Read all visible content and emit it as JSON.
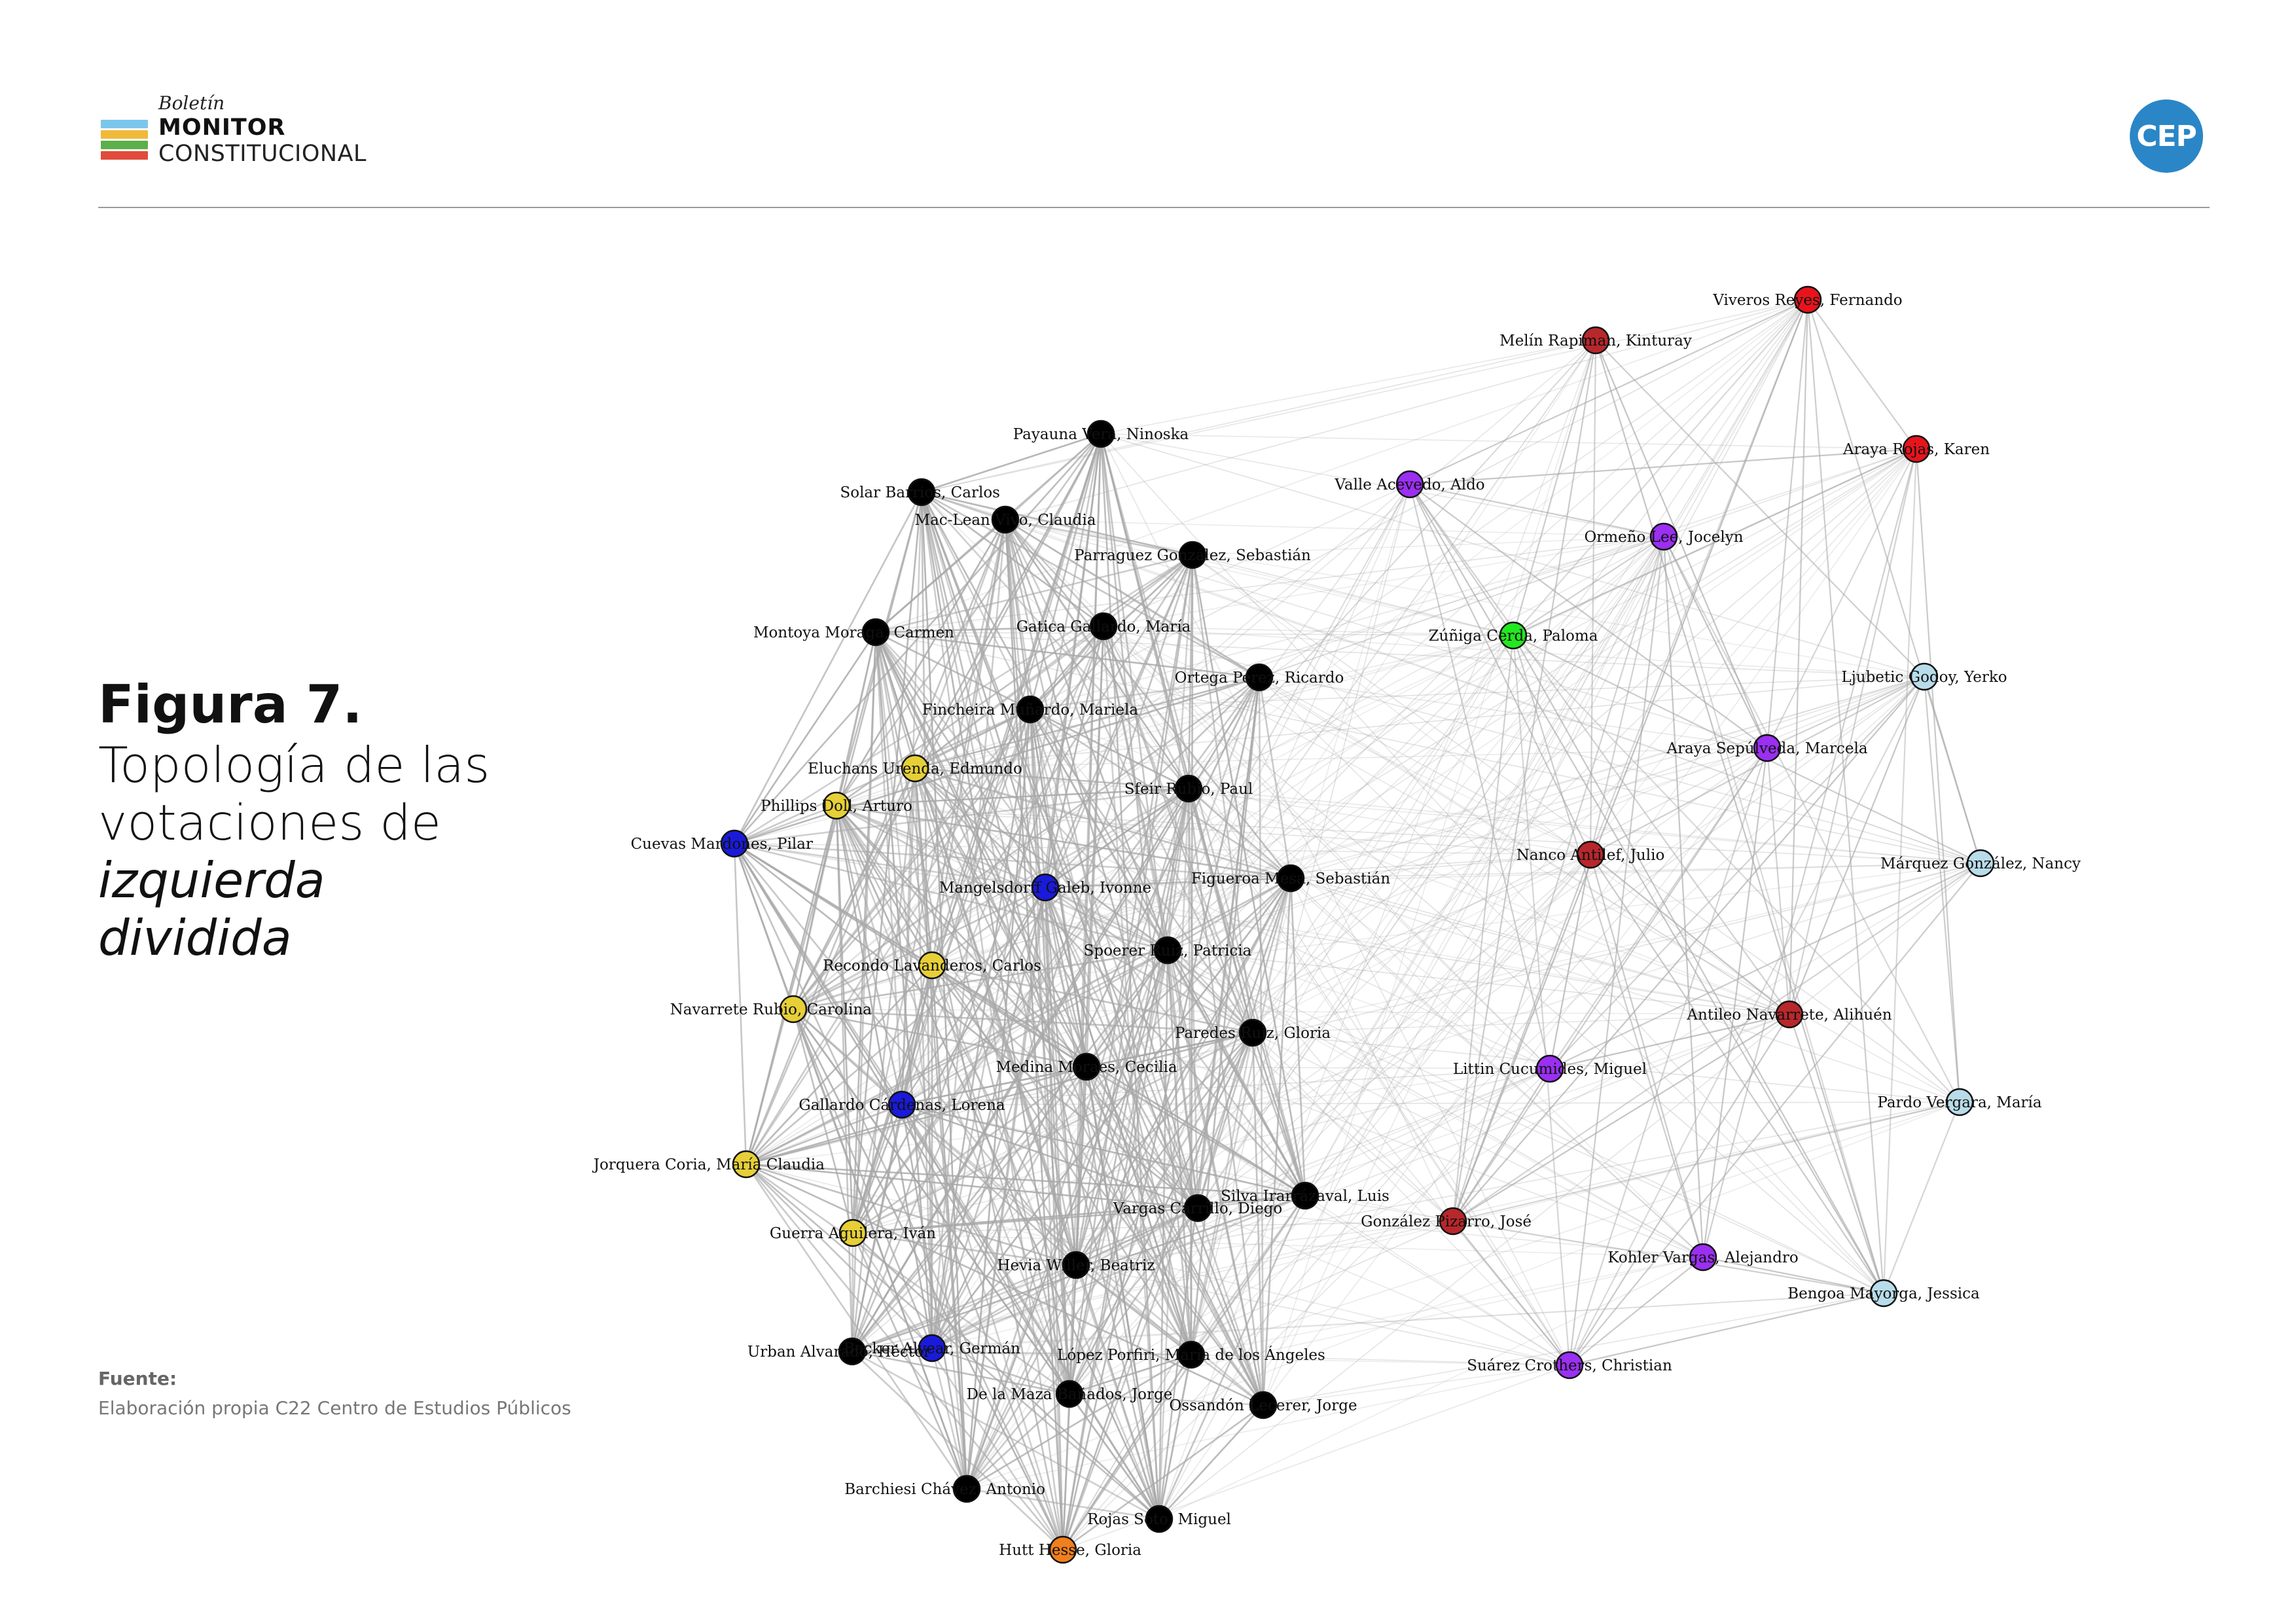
{
  "header": {
    "logo_line1": "Boletín",
    "logo_line2": "MONITOR",
    "logo_line3": "CONSTITUCIONAL",
    "logo_bar_colors": [
      "#7cc6ec",
      "#f0b93a",
      "#5bb04b",
      "#e04b3c"
    ],
    "badge": "CEP",
    "badge_color": "#2a86c7"
  },
  "figure": {
    "label": "Figura 7.",
    "title_plain": "Topología de las votaciones de ",
    "title_italic": "izquierda dividida"
  },
  "source": {
    "label": "Fuente:",
    "text": "Elaboración propia C22 Centro de Estudios Públicos"
  },
  "colors": {
    "black": "#000000",
    "yellow": "#e6cf37",
    "blue": "#1a1adb",
    "orange": "#f07f1e",
    "purple": "#9b2ff2",
    "red": "#e8141c",
    "darkred": "#b8272b",
    "green": "#22e81f",
    "lightblue": "#b8dcea"
  },
  "network": {
    "nodes": [
      {
        "id": "payauna",
        "label": "Payauna Vera, Ninoska",
        "color": "black"
      },
      {
        "id": "solar",
        "label": "Solar Barrios, Carlos",
        "color": "black"
      },
      {
        "id": "maclean",
        "label": "Mac-Lean Vivo, Claudia",
        "color": "black"
      },
      {
        "id": "parraguez",
        "label": "Parraguez González, Sebastián",
        "color": "black"
      },
      {
        "id": "montoya",
        "label": "Montoya Moraga, Carmen",
        "color": "black"
      },
      {
        "id": "gatica",
        "label": "Gatica Gallardo, María",
        "color": "black"
      },
      {
        "id": "ortega",
        "label": "Ortega Perez, Ricardo",
        "color": "black"
      },
      {
        "id": "fincheira",
        "label": "Fincheira Muñardo, Mariela",
        "color": "black"
      },
      {
        "id": "eluchans",
        "label": "Eluchans Urenda, Edmundo",
        "color": "yellow"
      },
      {
        "id": "phillips",
        "label": "Phillips Doll, Arturo",
        "color": "yellow"
      },
      {
        "id": "cuevas",
        "label": "Cuevas Mardones, Pilar",
        "color": "blue"
      },
      {
        "id": "sfeir",
        "label": "Sfeir Rubio, Paul",
        "color": "black"
      },
      {
        "id": "mangelsdorff",
        "label": "Mangelsdorff Galeb, Ivonne",
        "color": "blue"
      },
      {
        "id": "figueroa",
        "label": "Figueroa Mesa, Sebastián",
        "color": "black"
      },
      {
        "id": "recondo",
        "label": "Recondo Lavanderos, Carlos",
        "color": "yellow"
      },
      {
        "id": "spoerer",
        "label": "Spoerer Ruiz, Patricia",
        "color": "black"
      },
      {
        "id": "navarrete",
        "label": "Navarrete Rubio, Carolina",
        "color": "yellow"
      },
      {
        "id": "paredes",
        "label": "Paredes Ruiz, Gloria",
        "color": "black"
      },
      {
        "id": "medina",
        "label": "Medina Moraes, Cecilia",
        "color": "black"
      },
      {
        "id": "gallardo",
        "label": "Gallardo Cárdenas, Lorena",
        "color": "blue"
      },
      {
        "id": "jorquera",
        "label": "Jorquera Coria, María Claudia",
        "color": "yellow"
      },
      {
        "id": "silva",
        "label": "Silva Irarrázaval, Luis",
        "color": "black"
      },
      {
        "id": "vargasc",
        "label": "Vargas Carrillo, Diego",
        "color": "black"
      },
      {
        "id": "guerra",
        "label": "Guerra Aguilera, Iván",
        "color": "yellow"
      },
      {
        "id": "hevia",
        "label": "Hevia Willer, Beatriz",
        "color": "black"
      },
      {
        "id": "urban",
        "label": "Urban Alvarado, Héctor",
        "color": "black"
      },
      {
        "id": "german",
        "label": "Becker Alvear, Germán",
        "color": "blue"
      },
      {
        "id": "lopez",
        "label": "López Porfiri, María de los Ángeles",
        "color": "black"
      },
      {
        "id": "delamaza",
        "label": "De la Maza Bañados, Jorge",
        "color": "black"
      },
      {
        "id": "ossandon",
        "label": "Ossandón Lecerer, Jorge",
        "color": "black"
      },
      {
        "id": "barchiesi",
        "label": "Barchiesi Chávez, Antonio",
        "color": "black"
      },
      {
        "id": "rojas",
        "label": "Rojas Soto, Miguel",
        "color": "black"
      },
      {
        "id": "hutt",
        "label": "Hutt Hesse, Gloria",
        "color": "orange"
      },
      {
        "id": "viveros",
        "label": "Viveros Reyes, Fernando",
        "color": "red"
      },
      {
        "id": "melin",
        "label": "Melín Rapiman, Kinturay",
        "color": "darkred"
      },
      {
        "id": "arayar",
        "label": "Araya Rojas, Karen",
        "color": "red"
      },
      {
        "id": "valle",
        "label": "Valle Acevedo, Aldo",
        "color": "purple"
      },
      {
        "id": "ormeno",
        "label": "Ormeño Lee, Jocelyn",
        "color": "purple"
      },
      {
        "id": "zuniga",
        "label": "Zúñiga Cerda, Paloma",
        "color": "green"
      },
      {
        "id": "ljubetic",
        "label": "Ljubetic Godoy, Yerko",
        "color": "lightblue"
      },
      {
        "id": "arayas",
        "label": "Araya Sepúlveda, Marcela",
        "color": "purple"
      },
      {
        "id": "nanco",
        "label": "Nanco Antilef, Julio",
        "color": "darkred"
      },
      {
        "id": "marquez",
        "label": "Márquez González, Nancy",
        "color": "lightblue"
      },
      {
        "id": "antileo",
        "label": "Antileo Navarrete, Alihuén",
        "color": "darkred"
      },
      {
        "id": "littin",
        "label": "Littin Cucumides, Miguel",
        "color": "purple"
      },
      {
        "id": "pardo",
        "label": "Pardo Vergara, María",
        "color": "lightblue"
      },
      {
        "id": "gonzalezp",
        "label": "González Pizarro, José",
        "color": "darkred"
      },
      {
        "id": "kohler",
        "label": "Kohler Vargas, Alejandro",
        "color": "purple"
      },
      {
        "id": "bengoa",
        "label": "Bengoa Mayorga, Jessica",
        "color": "lightblue"
      },
      {
        "id": "suarez",
        "label": "Suárez Crothers, Christian",
        "color": "purple"
      }
    ]
  }
}
